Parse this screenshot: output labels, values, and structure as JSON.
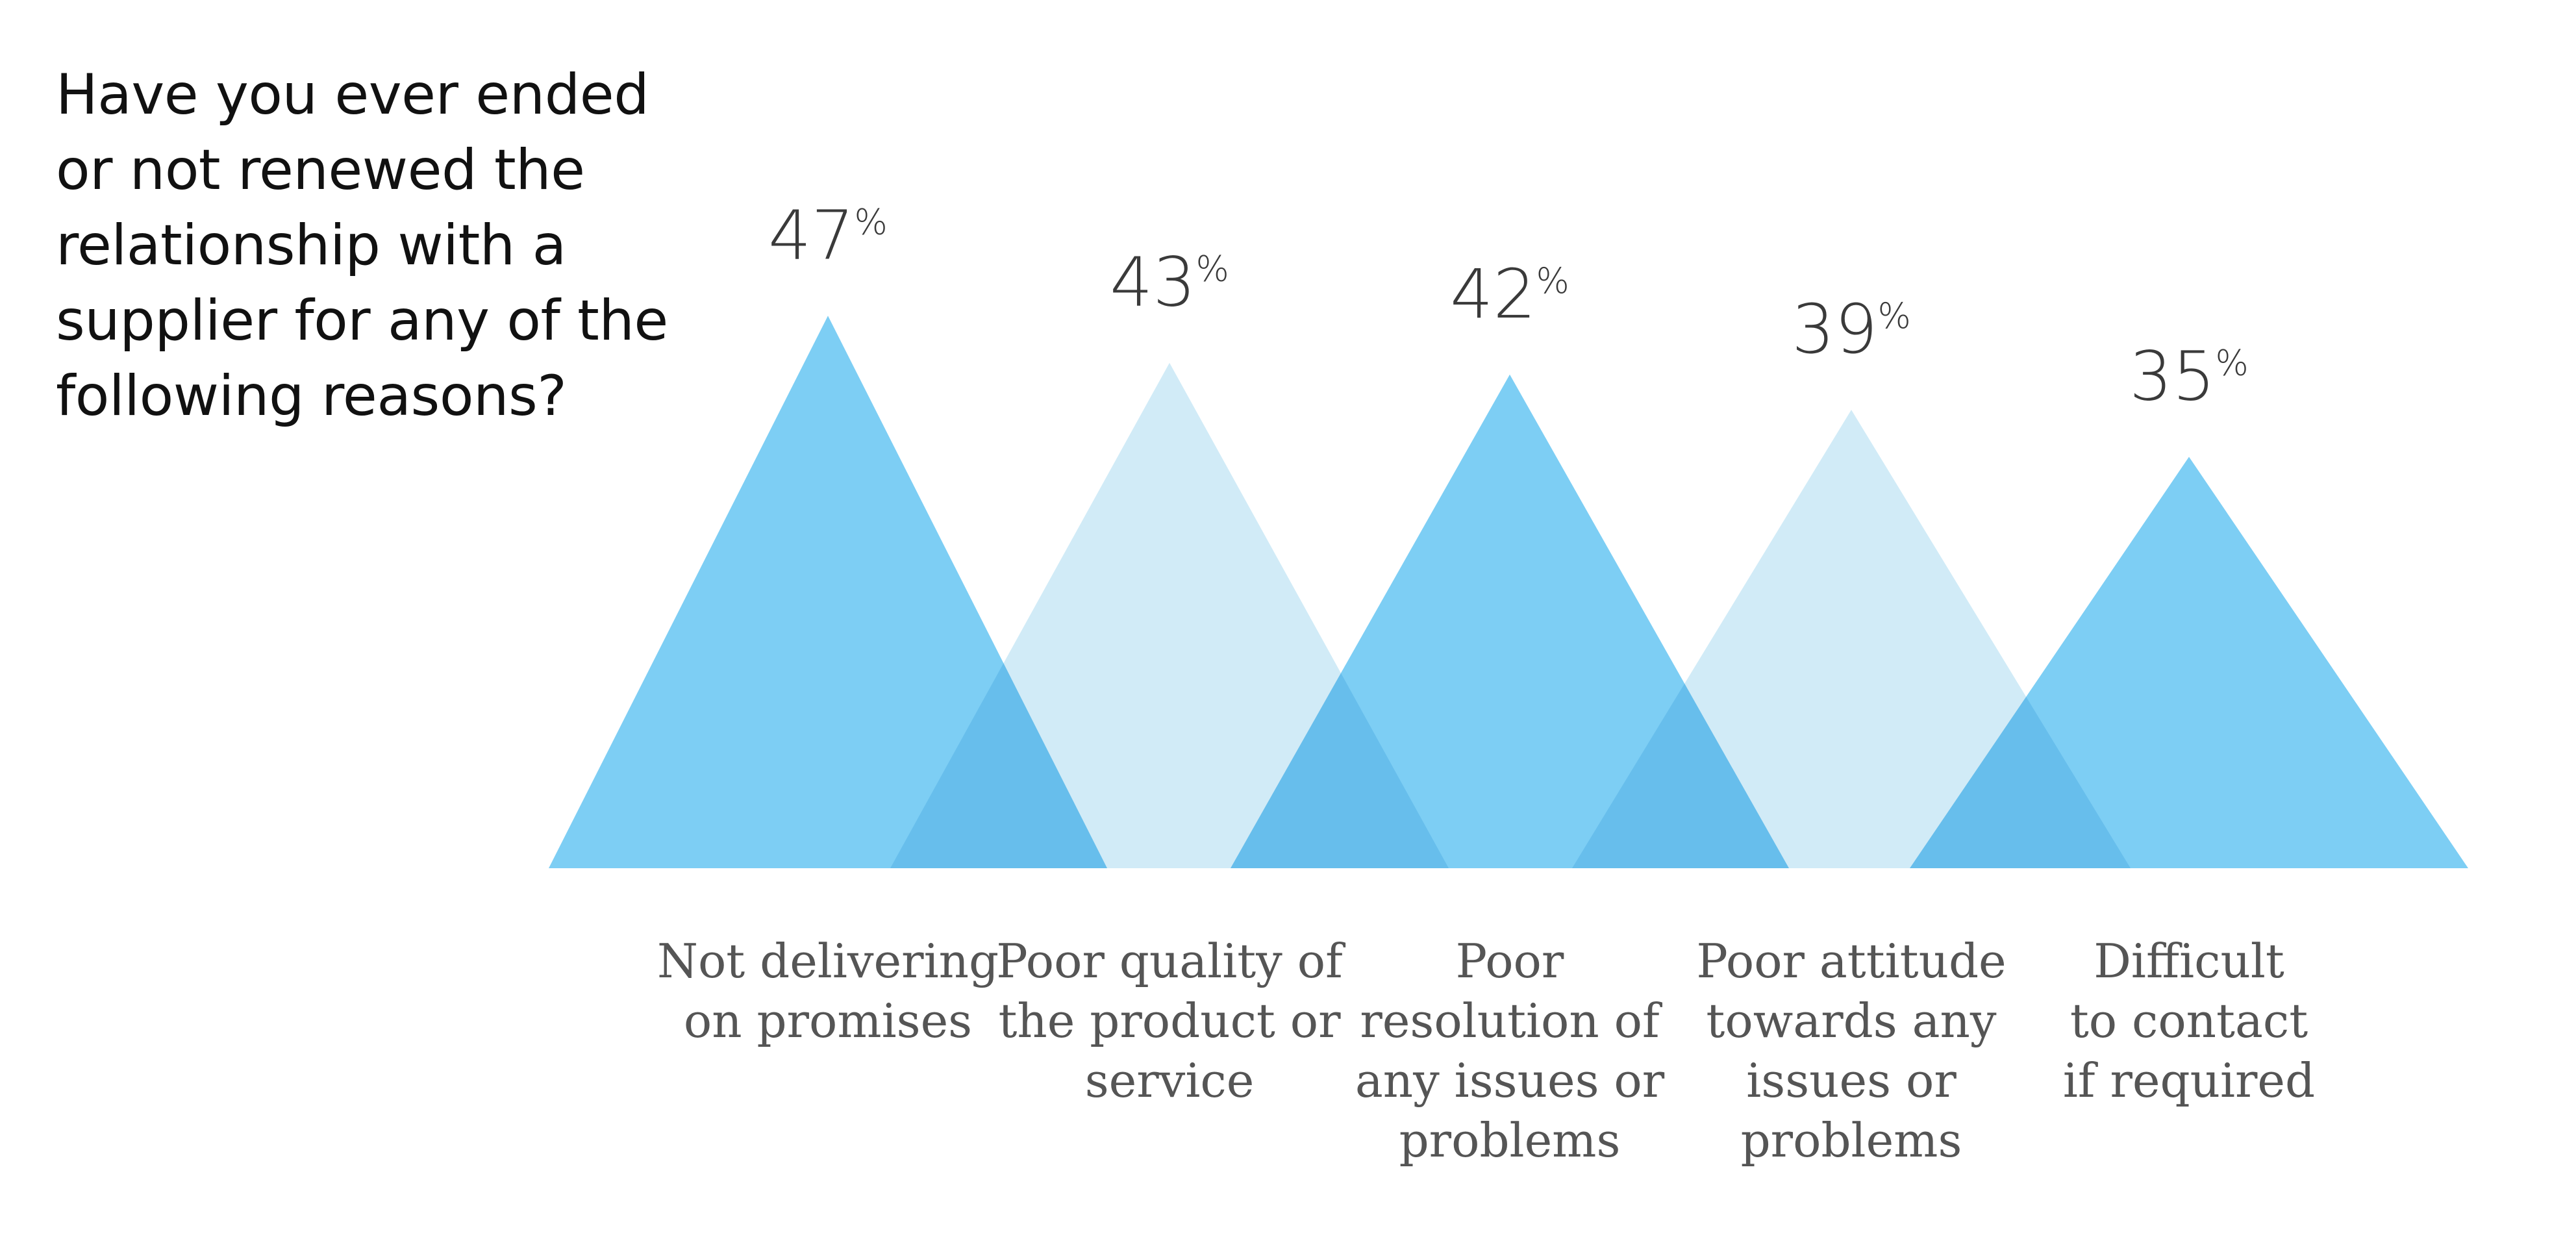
{
  "title": {
    "lines": [
      "Have you ever ended",
      "or not renewed the",
      "relationship with a",
      "supplier for any of the",
      "following reasons?"
    ]
  },
  "colors": {
    "dark_triangle": "#7dcef4",
    "light_triangle": "#d1ebf7",
    "overlap": "#66bbed",
    "value_text": "#3a3a3a",
    "category_text": "#555555",
    "title_text": "#111111"
  },
  "chart_data": {
    "type": "bar",
    "title": "Have you ever ended or not renewed the relationship with a supplier for any of the following reasons?",
    "xlabel": "",
    "ylabel": "",
    "unit": "%",
    "ylim": [
      0,
      50
    ],
    "categories": [
      [
        "Not delivering",
        "on promises"
      ],
      [
        "Poor quality of",
        "the product or",
        "service"
      ],
      [
        "Poor",
        "resolution of",
        "any issues or",
        "problems"
      ],
      [
        "Poor attitude",
        "towards any",
        "issues or",
        "problems"
      ],
      [
        "Difficult",
        "to contact",
        "if required"
      ]
    ],
    "values": [
      47,
      43,
      42,
      39,
      35
    ],
    "value_labels": [
      "47",
      "43",
      "42",
      "39",
      "35"
    ],
    "shade": [
      "dark",
      "light",
      "dark",
      "light",
      "dark"
    ]
  }
}
